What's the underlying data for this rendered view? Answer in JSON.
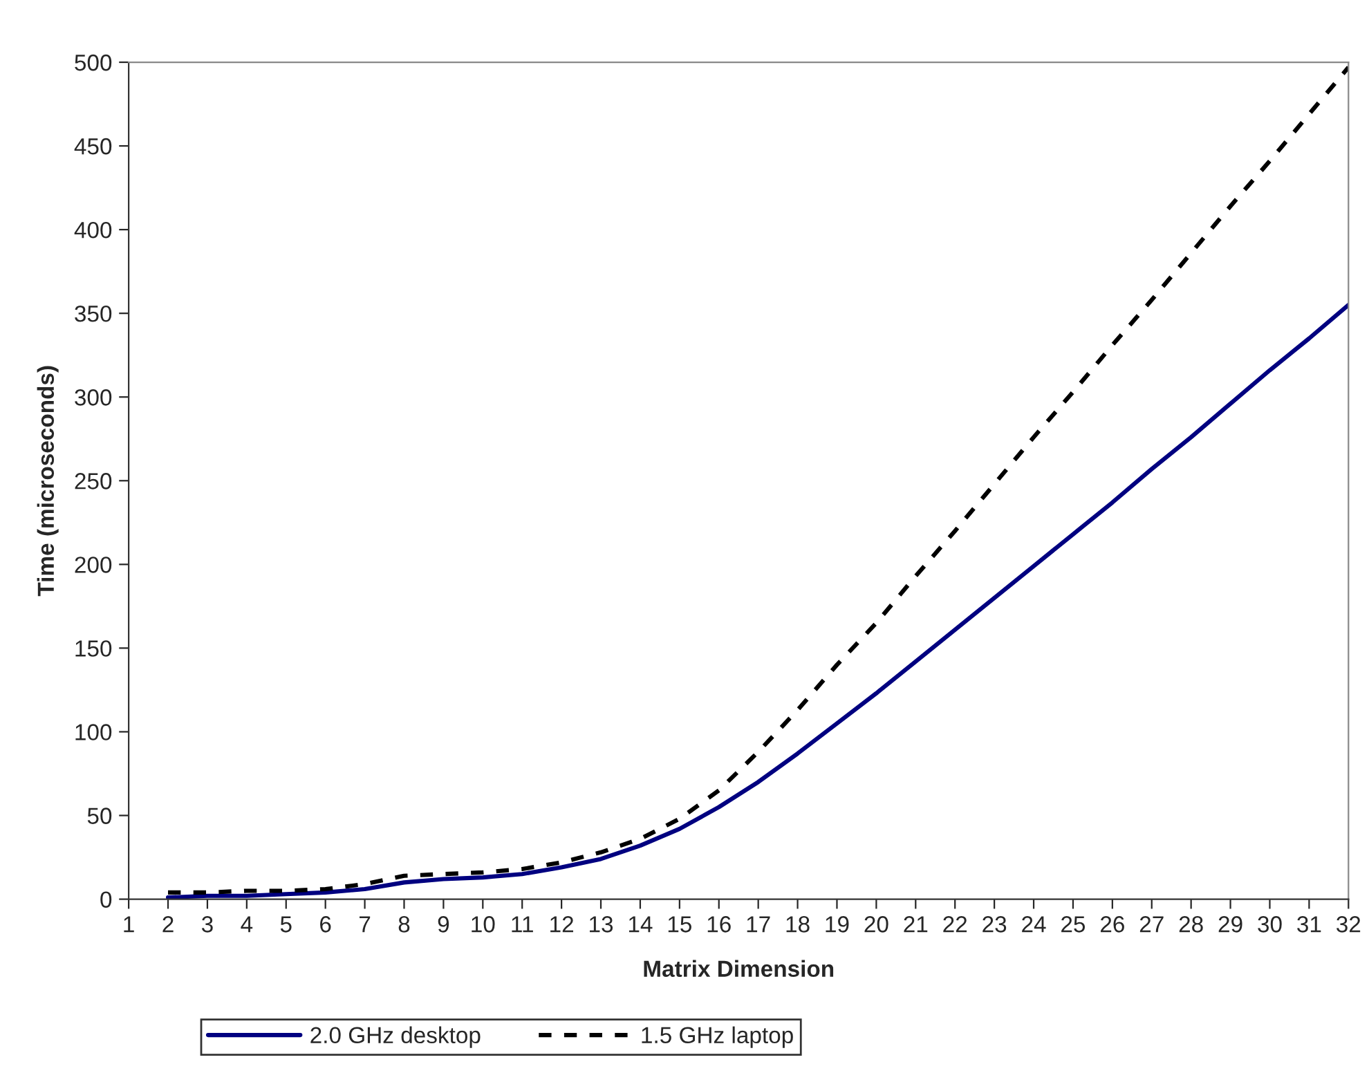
{
  "chart_data": {
    "type": "line",
    "xlabel": "Matrix Dimension",
    "ylabel": "Time (microseconds)",
    "x": [
      2,
      3,
      4,
      5,
      6,
      7,
      8,
      9,
      10,
      11,
      12,
      13,
      14,
      15,
      16,
      17,
      18,
      19,
      20,
      21,
      22,
      23,
      24,
      25,
      26,
      27,
      28,
      29,
      30,
      31,
      32
    ],
    "xlim": [
      1,
      32
    ],
    "xticks": [
      1,
      2,
      3,
      4,
      5,
      6,
      7,
      8,
      9,
      10,
      11,
      12,
      13,
      14,
      15,
      16,
      17,
      18,
      19,
      20,
      21,
      22,
      23,
      24,
      25,
      26,
      27,
      28,
      29,
      30,
      31,
      32
    ],
    "ylim": [
      0,
      500
    ],
    "yticks": [
      0,
      50,
      100,
      150,
      200,
      250,
      300,
      350,
      400,
      450,
      500
    ],
    "series": [
      {
        "name": "2.0 GHz desktop",
        "color": "#000080",
        "line_style": "solid",
        "values": [
          1,
          2,
          2,
          3,
          4,
          6,
          10,
          12,
          13,
          15,
          19,
          24,
          32,
          42,
          55,
          70,
          87,
          105,
          123,
          142,
          161,
          180,
          199,
          218,
          237,
          257,
          276,
          296,
          316,
          335,
          355
        ]
      },
      {
        "name": "1.5 GHz laptop",
        "color": "#000000",
        "line_style": "dashed",
        "values": [
          4,
          4,
          5,
          5,
          6,
          9,
          14,
          15,
          16,
          18,
          22,
          28,
          36,
          48,
          65,
          88,
          113,
          140,
          165,
          193,
          220,
          248,
          276,
          303,
          331,
          358,
          386,
          414,
          441,
          469,
          497
        ]
      }
    ],
    "grid": false,
    "legend": "bottom",
    "marker": "none"
  }
}
